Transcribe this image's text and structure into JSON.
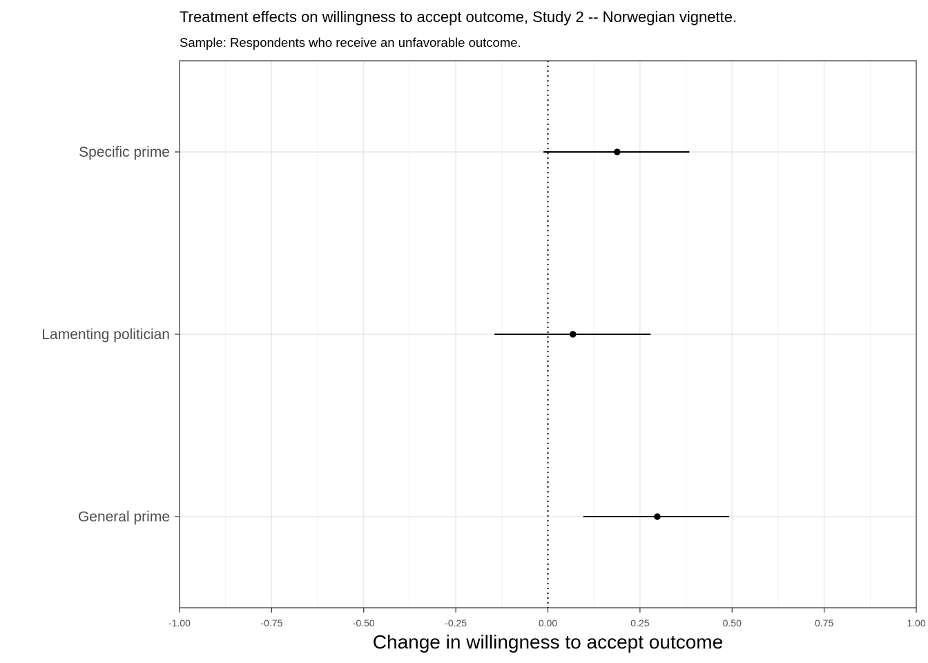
{
  "chart_data": {
    "type": "scatter",
    "title": "Treatment effects on willingness to accept outcome, Study 2 -- Norwegian vignette.",
    "subtitle": "Sample: Respondents who receive an unfavorable outcome.",
    "xlabel": "Change in willingness to accept outcome",
    "ylabel": "",
    "xlim": [
      -1.0,
      1.0
    ],
    "x_ticks": [
      -1.0,
      -0.75,
      -0.5,
      -0.25,
      0.0,
      0.25,
      0.5,
      0.75,
      1.0
    ],
    "x_tick_labels": [
      "-1.00",
      "-0.75",
      "-0.50",
      "-0.25",
      "0.00",
      "0.25",
      "0.50",
      "0.75",
      "1.00"
    ],
    "reference_line": 0.0,
    "grid": true,
    "categories": [
      "Specific prime",
      "Lamenting politician",
      "General prime"
    ],
    "estimates": [
      0.188,
      0.068,
      0.297
    ],
    "ci_low": [
      -0.012,
      -0.145,
      0.096
    ],
    "ci_high": [
      0.384,
      0.279,
      0.492
    ]
  }
}
